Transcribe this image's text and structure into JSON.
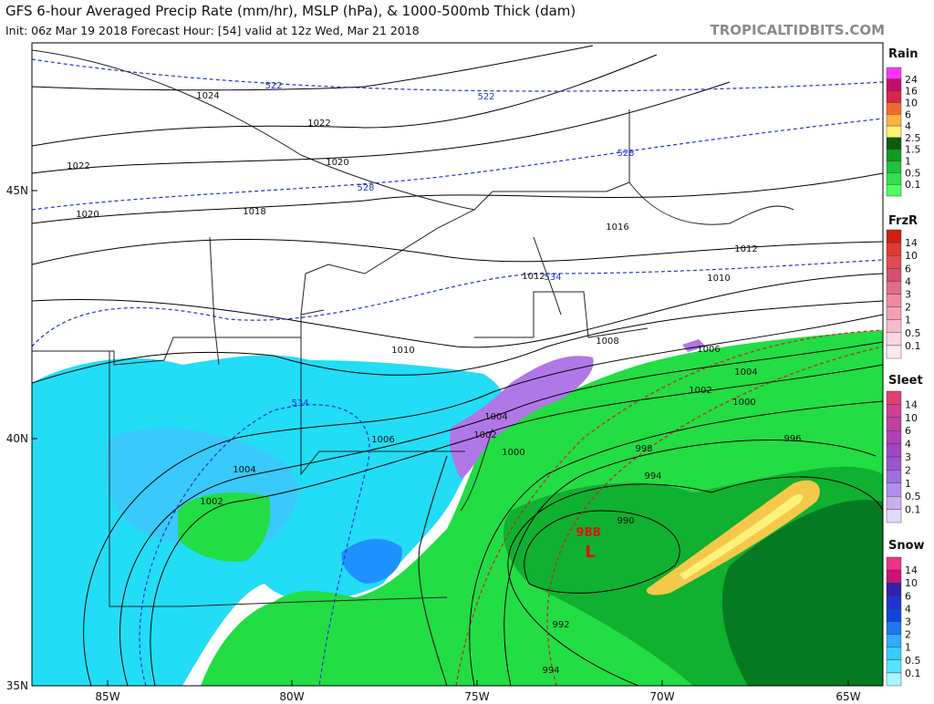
{
  "header": {
    "title": "GFS 6-hour Averaged Precip Rate (mm/hr), MSLP (hPa), & 1000-500mb Thick (dam)",
    "subtitle": "Init: 06z Mar 19 2018   Forecast Hour: [54]   valid at 12z Wed, Mar 21 2018",
    "credit": "TROPICALTIDBITS.COM"
  },
  "map": {
    "lat_labels": [
      "45N",
      "40N",
      "35N"
    ],
    "lon_labels": [
      "85W",
      "80W",
      "75W",
      "70W",
      "65W"
    ],
    "isobar_labels": [
      "1024",
      "1022",
      "1022",
      "1020",
      "1020",
      "1018",
      "1016",
      "1012",
      "1012",
      "1010",
      "1010",
      "1008",
      "1006",
      "1006",
      "1004",
      "1004",
      "1004",
      "1002",
      "1002",
      "1002",
      "1000",
      "1000",
      "998",
      "996",
      "994",
      "992",
      "990",
      "994"
    ],
    "thickness_labels": [
      "522",
      "522",
      "528",
      "528",
      "534",
      "534"
    ],
    "low": {
      "pressure": "988",
      "symbol": "L"
    }
  },
  "legend": [
    {
      "title": "Rain",
      "labels": [
        "24",
        "16",
        "10",
        "6",
        "4",
        "2.5",
        "1.5",
        "1",
        "0.5",
        "0.1"
      ],
      "colors": [
        "#ff33ff",
        "#c0106a",
        "#d8264a",
        "#f06a30",
        "#ffb040",
        "#fff070",
        "#0a5a10",
        "#109a20",
        "#20c040",
        "#30e050",
        "#50ff60"
      ]
    },
    {
      "title": "FrzR",
      "labels": [
        "14",
        "10",
        "6",
        "4",
        "3",
        "2",
        "1",
        "0.5",
        "0.1"
      ],
      "colors": [
        "#cc2010",
        "#dd3a30",
        "#e04a55",
        "#d4506e",
        "#e06d88",
        "#ee8aa0",
        "#f0a2b4",
        "#f6bccb",
        "#fbd6e0",
        "#fde8ef"
      ]
    },
    {
      "title": "Sleet",
      "labels": [
        "14",
        "10",
        "6",
        "4",
        "3",
        "2",
        "1",
        "0.5",
        "0.1"
      ],
      "colors": [
        "#e04070",
        "#d04090",
        "#c040a0",
        "#b040b0",
        "#a045c0",
        "#9a55d0",
        "#a070e0",
        "#b090ea",
        "#c8b0f0",
        "#e4d8f8"
      ]
    },
    {
      "title": "Snow",
      "labels": [
        "14",
        "10",
        "6",
        "4",
        "3",
        "2",
        "1",
        "0.5",
        "0.1"
      ],
      "colors": [
        "#ee3388",
        "#cc1177",
        "#3322aa",
        "#2233cc",
        "#1144dd",
        "#1f77ee",
        "#33aaff",
        "#33ccff",
        "#55e4ff",
        "#a8f6ff"
      ]
    }
  ]
}
